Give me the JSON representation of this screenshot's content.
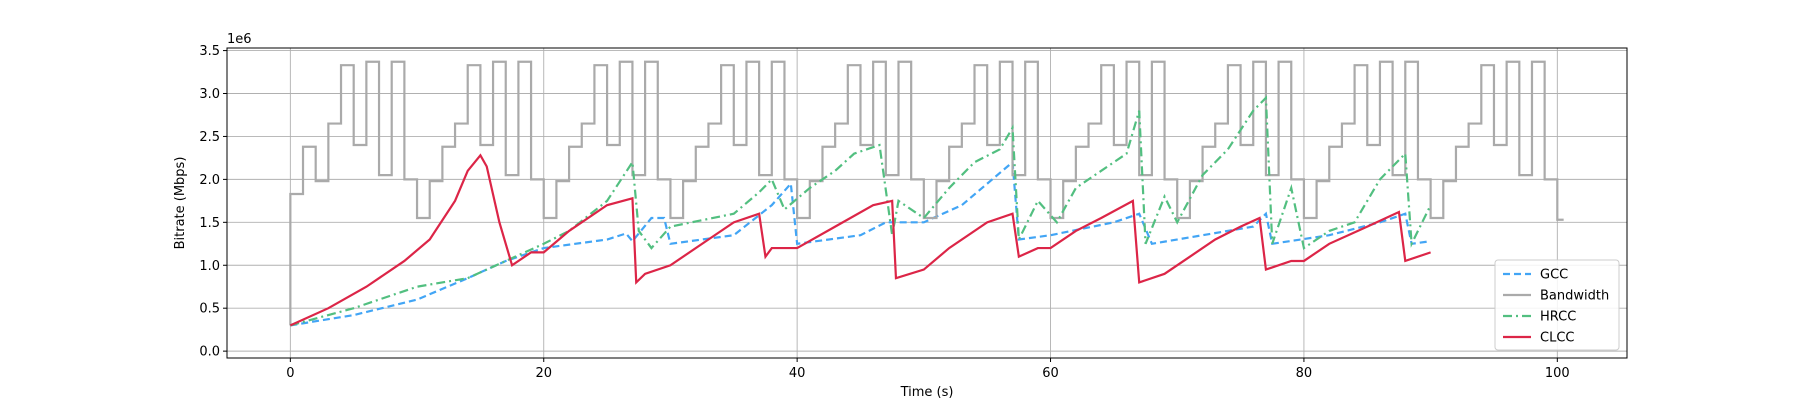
{
  "chart_data": {
    "type": "line",
    "xlabel": "Time (s)",
    "ylabel": "Bitrate (Mbps)",
    "y_offset_label": "1e6",
    "xlim": [
      -5,
      105.5
    ],
    "ylim": [
      -0.08,
      3.53
    ],
    "xticks": [
      0,
      20,
      40,
      60,
      80,
      100
    ],
    "yticks": [
      {
        "value": 0,
        "label": "0.0"
      },
      {
        "value": 0.5,
        "label": "0.5"
      },
      {
        "value": 1,
        "label": "1.0"
      },
      {
        "value": 1.5,
        "label": "1.5"
      },
      {
        "value": 2,
        "label": "2.0"
      },
      {
        "value": 2.5,
        "label": "2.5"
      },
      {
        "value": 3,
        "label": "3.0"
      },
      {
        "value": 3.5,
        "label": "3.5"
      }
    ],
    "grid": true,
    "legend": "lower right",
    "series": [
      {
        "name": "GCC",
        "color": "#42a5f5",
        "linestyle": "dashed",
        "x": [
          0,
          5,
          10,
          14,
          17,
          20,
          25,
          26.5,
          27,
          28.5,
          29.5,
          30,
          35,
          38,
          39.5,
          40,
          45,
          47,
          50,
          53,
          57,
          57.5,
          60,
          65,
          67,
          68,
          72,
          76,
          77,
          77.5,
          82,
          86,
          88,
          88.5,
          90
        ],
        "values": [
          0.3,
          0.42,
          0.6,
          0.85,
          1.05,
          1.2,
          1.3,
          1.37,
          1.28,
          1.55,
          1.55,
          1.25,
          1.35,
          1.7,
          1.95,
          1.25,
          1.35,
          1.5,
          1.5,
          1.7,
          2.2,
          1.3,
          1.35,
          1.5,
          1.6,
          1.25,
          1.35,
          1.45,
          1.6,
          1.25,
          1.35,
          1.5,
          1.6,
          1.25,
          1.28
        ]
      },
      {
        "name": "Bandwidth",
        "color": "#aaaaaa",
        "linestyle": "steps",
        "x": [
          0,
          0,
          1,
          2,
          3,
          4,
          5,
          6,
          7,
          8,
          9,
          10,
          11,
          12,
          13,
          14,
          15,
          16,
          17,
          18,
          19,
          20,
          21,
          22,
          23,
          24,
          25,
          26,
          27,
          28,
          29,
          30,
          31,
          32,
          33,
          34,
          35,
          36,
          37,
          38,
          39,
          40,
          41,
          42,
          43,
          44,
          45,
          46,
          47,
          48,
          49,
          50,
          51,
          52,
          53,
          54,
          55,
          56,
          57,
          58,
          59,
          60,
          61,
          62,
          63,
          64,
          65,
          66,
          67,
          68,
          69,
          70,
          71,
          72,
          73,
          74,
          75,
          76,
          77,
          78,
          79,
          80,
          81,
          82,
          83,
          84,
          85,
          86,
          87,
          88,
          89,
          90,
          91,
          92,
          93,
          94,
          95,
          96,
          97,
          98,
          99,
          100,
          100.5
        ],
        "values": [
          0.3,
          1.83,
          2.38,
          1.98,
          2.65,
          3.33,
          2.4,
          3.37,
          2.05,
          3.37,
          2.0,
          1.55,
          1.98,
          2.38,
          2.65,
          3.33,
          2.4,
          3.37,
          2.05,
          3.37,
          2.0,
          1.55,
          1.98,
          2.38,
          2.65,
          3.33,
          2.4,
          3.37,
          2.05,
          3.37,
          2.0,
          1.55,
          1.98,
          2.38,
          2.65,
          3.33,
          2.4,
          3.37,
          2.05,
          3.37,
          2.0,
          1.55,
          1.98,
          2.38,
          2.65,
          3.33,
          2.4,
          3.37,
          2.05,
          3.37,
          2.0,
          1.55,
          1.98,
          2.38,
          2.65,
          3.33,
          2.4,
          3.37,
          2.05,
          3.37,
          2.0,
          1.55,
          1.98,
          2.38,
          2.65,
          3.33,
          2.4,
          3.37,
          2.05,
          3.37,
          2.0,
          1.55,
          1.98,
          2.38,
          2.65,
          3.33,
          2.4,
          3.37,
          2.05,
          3.37,
          2.0,
          1.55,
          1.98,
          2.38,
          2.65,
          3.33,
          2.4,
          3.37,
          2.05,
          3.37,
          2.0,
          1.55,
          1.98,
          2.38,
          2.65,
          3.33,
          2.4,
          3.37,
          2.05,
          3.37,
          2.0,
          1.53,
          1.53
        ]
      },
      {
        "name": "HRCC",
        "color": "#52bf80",
        "linestyle": "dashdot",
        "x": [
          0,
          5,
          10,
          14,
          17,
          20,
          22,
          25,
          27,
          27.5,
          28.5,
          30,
          35,
          37,
          38,
          39,
          41,
          43,
          44.5,
          46.5,
          47.5,
          48,
          50,
          52,
          54,
          56,
          57,
          57.5,
          59,
          60.5,
          62,
          64,
          66,
          67,
          67.5,
          69,
          70,
          72,
          74,
          76,
          77,
          77.5,
          79,
          80,
          82,
          84,
          86,
          88,
          88.5,
          90
        ],
        "values": [
          0.3,
          0.5,
          0.75,
          0.85,
          1.05,
          1.25,
          1.4,
          1.75,
          2.2,
          1.4,
          1.2,
          1.45,
          1.6,
          1.85,
          2.0,
          1.65,
          1.9,
          2.1,
          2.3,
          2.4,
          1.35,
          1.75,
          1.55,
          1.9,
          2.2,
          2.35,
          2.6,
          1.3,
          1.75,
          1.5,
          1.9,
          2.1,
          2.3,
          2.8,
          1.25,
          1.8,
          1.5,
          2.05,
          2.35,
          2.8,
          2.95,
          1.25,
          1.9,
          1.2,
          1.4,
          1.5,
          2.0,
          2.3,
          1.25,
          1.7
        ]
      },
      {
        "name": "CLCC",
        "color": "#dc2547",
        "linestyle": "solid",
        "x": [
          0,
          3,
          6,
          9,
          11,
          13,
          14,
          15,
          15.5,
          16.5,
          17.5,
          19,
          20,
          22,
          25,
          27,
          27.3,
          28,
          30,
          33,
          35,
          37,
          37.5,
          38,
          40,
          43,
          46,
          47.5,
          47.8,
          50,
          52,
          55,
          57,
          57.5,
          59,
          60,
          62,
          64,
          66.5,
          67,
          69,
          71,
          73,
          75,
          76.5,
          77,
          79,
          80,
          82,
          85,
          87.5,
          88,
          90
        ],
        "values": [
          0.3,
          0.5,
          0.75,
          1.05,
          1.3,
          1.75,
          2.1,
          2.28,
          2.15,
          1.5,
          1.0,
          1.15,
          1.15,
          1.4,
          1.7,
          1.78,
          0.8,
          0.9,
          1.0,
          1.3,
          1.5,
          1.6,
          1.1,
          1.2,
          1.2,
          1.45,
          1.7,
          1.75,
          0.85,
          0.95,
          1.2,
          1.5,
          1.6,
          1.1,
          1.2,
          1.2,
          1.4,
          1.55,
          1.75,
          0.8,
          0.9,
          1.1,
          1.3,
          1.45,
          1.55,
          0.95,
          1.05,
          1.05,
          1.25,
          1.45,
          1.62,
          1.05,
          1.15
        ]
      }
    ]
  }
}
